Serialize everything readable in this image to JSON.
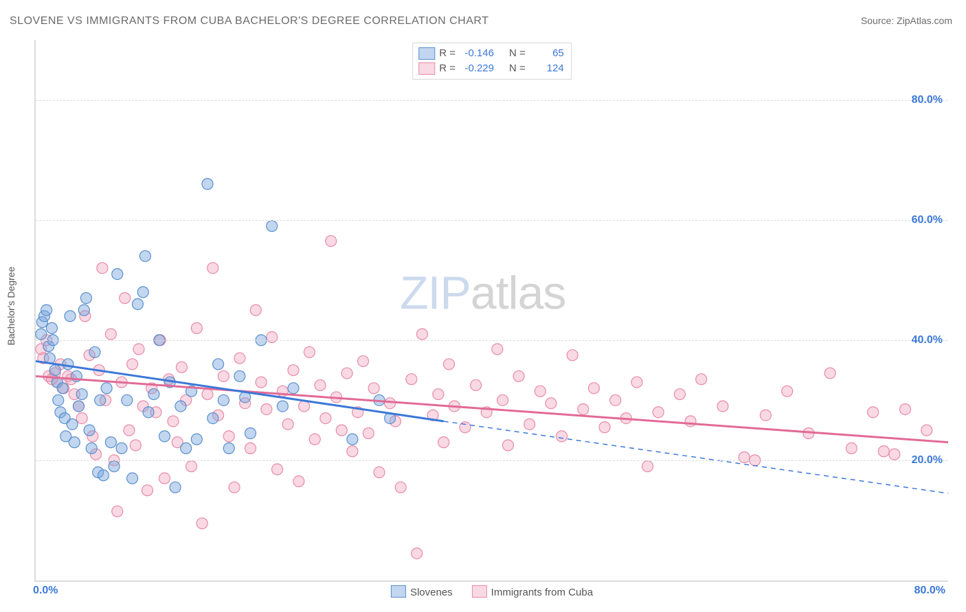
{
  "title": "SLOVENE VS IMMIGRANTS FROM CUBA BACHELOR'S DEGREE CORRELATION CHART",
  "source": "Source: ZipAtlas.com",
  "ylabel": "Bachelor's Degree",
  "watermark_zip": "ZIP",
  "watermark_atlas": "atlas",
  "xlim": [
    0,
    85
  ],
  "ylim": [
    0,
    90
  ],
  "yticks": [
    20,
    40,
    60,
    80
  ],
  "ytick_labels": [
    "20.0%",
    "40.0%",
    "60.0%",
    "80.0%"
  ],
  "ytick_color": "#3b78d8",
  "xtick_left": "0.0%",
  "xtick_right": "80.0%",
  "xtick_color": "#3b78d8",
  "grid_color": "#dcdcdc",
  "background": "#ffffff",
  "series": [
    {
      "name": "Slovenes",
      "marker_fill": "rgba(120,165,220,0.45)",
      "marker_stroke": "#5a8fce",
      "marker_r": 8,
      "line_color": "#3b78d8",
      "line_width": 3,
      "reg_solid": {
        "x1": 0,
        "y1": 36.5,
        "x2": 38,
        "y2": 26.5
      },
      "reg_dash": {
        "x1": 38,
        "y1": 26.5,
        "x2": 85,
        "y2": 14.5
      },
      "R_label": "R =",
      "R_value": "-0.146",
      "N_label": "N =",
      "N_value": "65",
      "points": [
        [
          0.5,
          41
        ],
        [
          0.6,
          43
        ],
        [
          0.8,
          44
        ],
        [
          1.0,
          45
        ],
        [
          1.2,
          39
        ],
        [
          1.3,
          37
        ],
        [
          1.5,
          42
        ],
        [
          1.6,
          40
        ],
        [
          1.8,
          35
        ],
        [
          2.0,
          33
        ],
        [
          2.1,
          30
        ],
        [
          2.3,
          28
        ],
        [
          2.5,
          32
        ],
        [
          2.7,
          27
        ],
        [
          2.8,
          24
        ],
        [
          3.0,
          36
        ],
        [
          3.2,
          44
        ],
        [
          3.4,
          26
        ],
        [
          3.6,
          23
        ],
        [
          3.8,
          34
        ],
        [
          4.0,
          29
        ],
        [
          4.3,
          31
        ],
        [
          4.5,
          45
        ],
        [
          4.7,
          47
        ],
        [
          5.0,
          25
        ],
        [
          5.2,
          22
        ],
        [
          5.5,
          38
        ],
        [
          5.8,
          18
        ],
        [
          6.0,
          30
        ],
        [
          6.3,
          17.5
        ],
        [
          6.6,
          32
        ],
        [
          7.0,
          23
        ],
        [
          7.3,
          19
        ],
        [
          7.6,
          51
        ],
        [
          8.0,
          22
        ],
        [
          8.5,
          30
        ],
        [
          9.0,
          17
        ],
        [
          9.5,
          46
        ],
        [
          10.0,
          48
        ],
        [
          10.2,
          54
        ],
        [
          10.5,
          28
        ],
        [
          11.0,
          31
        ],
        [
          11.5,
          40
        ],
        [
          12.0,
          24
        ],
        [
          12.5,
          33
        ],
        [
          13.0,
          15.5
        ],
        [
          13.5,
          29
        ],
        [
          14.0,
          22
        ],
        [
          14.5,
          31.5
        ],
        [
          15.0,
          23.5
        ],
        [
          16.0,
          66
        ],
        [
          16.5,
          27
        ],
        [
          17.0,
          36
        ],
        [
          17.5,
          30
        ],
        [
          18.0,
          22
        ],
        [
          19.0,
          34
        ],
        [
          19.5,
          30.5
        ],
        [
          20.0,
          24.5
        ],
        [
          21.0,
          40
        ],
        [
          22.0,
          59
        ],
        [
          23.0,
          29
        ],
        [
          24.0,
          32
        ],
        [
          29.5,
          23.5
        ],
        [
          32.0,
          30
        ],
        [
          33.0,
          27
        ]
      ]
    },
    {
      "name": "Immigrants from Cuba",
      "marker_fill": "rgba(240,160,185,0.40)",
      "marker_stroke": "#e88aa8",
      "marker_r": 8,
      "line_color": "#e26a96",
      "line_width": 3,
      "reg_solid": {
        "x1": 0,
        "y1": 34.0,
        "x2": 85,
        "y2": 23.0
      },
      "reg_dash": null,
      "R_label": "R =",
      "R_value": "-0.229",
      "N_label": "N =",
      "N_value": "124",
      "points": [
        [
          0.5,
          38.5
        ],
        [
          0.7,
          37
        ],
        [
          1.0,
          40
        ],
        [
          1.2,
          34
        ],
        [
          1.5,
          33.5
        ],
        [
          1.8,
          34.5
        ],
        [
          2.0,
          33
        ],
        [
          2.3,
          36
        ],
        [
          2.6,
          32
        ],
        [
          3.0,
          34
        ],
        [
          3.3,
          33.5
        ],
        [
          3.6,
          31
        ],
        [
          4.0,
          29
        ],
        [
          4.3,
          27
        ],
        [
          4.6,
          44
        ],
        [
          5.0,
          37.5
        ],
        [
          5.3,
          24
        ],
        [
          5.6,
          21
        ],
        [
          5.9,
          35
        ],
        [
          6.2,
          52
        ],
        [
          6.5,
          30
        ],
        [
          7.0,
          41
        ],
        [
          7.3,
          20
        ],
        [
          7.6,
          11.5
        ],
        [
          8.0,
          33
        ],
        [
          8.3,
          47
        ],
        [
          8.7,
          25
        ],
        [
          9.0,
          36
        ],
        [
          9.3,
          22.5
        ],
        [
          9.6,
          38.5
        ],
        [
          10.0,
          29
        ],
        [
          10.4,
          15
        ],
        [
          10.8,
          32
        ],
        [
          11.2,
          28
        ],
        [
          11.6,
          40
        ],
        [
          12.0,
          17
        ],
        [
          12.4,
          33.5
        ],
        [
          12.8,
          26.5
        ],
        [
          13.2,
          23
        ],
        [
          13.6,
          35.5
        ],
        [
          14.0,
          30
        ],
        [
          14.5,
          19
        ],
        [
          15.0,
          42
        ],
        [
          15.5,
          9.5
        ],
        [
          16.0,
          31
        ],
        [
          16.5,
          52
        ],
        [
          17.0,
          27.5
        ],
        [
          17.5,
          34
        ],
        [
          18.0,
          24
        ],
        [
          18.5,
          15.5
        ],
        [
          19.0,
          37
        ],
        [
          19.5,
          29.5
        ],
        [
          20.0,
          22
        ],
        [
          20.5,
          45
        ],
        [
          21.0,
          33
        ],
        [
          21.5,
          28.5
        ],
        [
          22.0,
          40.5
        ],
        [
          22.5,
          18.5
        ],
        [
          23.0,
          31.5
        ],
        [
          23.5,
          26
        ],
        [
          24.0,
          35
        ],
        [
          24.5,
          16.5
        ],
        [
          25.0,
          29
        ],
        [
          25.5,
          38
        ],
        [
          26.0,
          23.5
        ],
        [
          26.5,
          32.5
        ],
        [
          27.0,
          27
        ],
        [
          27.5,
          56.5
        ],
        [
          28.0,
          30.5
        ],
        [
          28.5,
          25
        ],
        [
          29.0,
          34.5
        ],
        [
          29.5,
          21.5
        ],
        [
          30.0,
          28
        ],
        [
          30.5,
          36.5
        ],
        [
          31.0,
          24.5
        ],
        [
          31.5,
          32
        ],
        [
          32.0,
          18
        ],
        [
          33.0,
          29.5
        ],
        [
          33.5,
          26.5
        ],
        [
          34.0,
          15.5
        ],
        [
          35.0,
          33.5
        ],
        [
          35.5,
          4.5
        ],
        [
          36.0,
          41
        ],
        [
          37.0,
          27.5
        ],
        [
          37.5,
          31
        ],
        [
          38.0,
          23
        ],
        [
          38.5,
          36
        ],
        [
          39.0,
          29
        ],
        [
          40.0,
          25.5
        ],
        [
          41.0,
          32.5
        ],
        [
          42.0,
          28
        ],
        [
          43.0,
          38.5
        ],
        [
          43.5,
          30
        ],
        [
          44.0,
          22.5
        ],
        [
          45.0,
          34
        ],
        [
          46.0,
          26
        ],
        [
          47.0,
          31.5
        ],
        [
          48.0,
          29.5
        ],
        [
          49.0,
          24
        ],
        [
          50.0,
          37.5
        ],
        [
          51.0,
          28.5
        ],
        [
          52.0,
          32
        ],
        [
          53.0,
          25.5
        ],
        [
          54.0,
          30
        ],
        [
          55.0,
          27
        ],
        [
          56.0,
          33
        ],
        [
          57.0,
          19
        ],
        [
          58.0,
          28
        ],
        [
          60.0,
          31
        ],
        [
          61.0,
          26.5
        ],
        [
          62.0,
          33.5
        ],
        [
          64.0,
          29
        ],
        [
          66.0,
          20.5
        ],
        [
          67.0,
          20
        ],
        [
          68.0,
          27.5
        ],
        [
          70.0,
          31.5
        ],
        [
          72.0,
          24.5
        ],
        [
          74.0,
          34.5
        ],
        [
          76.0,
          22
        ],
        [
          78.0,
          28
        ],
        [
          79.0,
          21.5
        ],
        [
          80.0,
          21
        ],
        [
          81.0,
          28.5
        ],
        [
          83.0,
          25
        ]
      ]
    }
  ],
  "top_legend_swatches": [
    {
      "fill": "rgba(120,165,220,0.45)",
      "border": "#5a8fce"
    },
    {
      "fill": "rgba(240,160,185,0.40)",
      "border": "#e88aa8"
    }
  ],
  "bottom_legend": [
    {
      "label": "Slovenes",
      "fill": "rgba(120,165,220,0.45)",
      "border": "#5a8fce"
    },
    {
      "label": "Immigrants from Cuba",
      "fill": "rgba(240,160,185,0.40)",
      "border": "#e88aa8"
    }
  ]
}
